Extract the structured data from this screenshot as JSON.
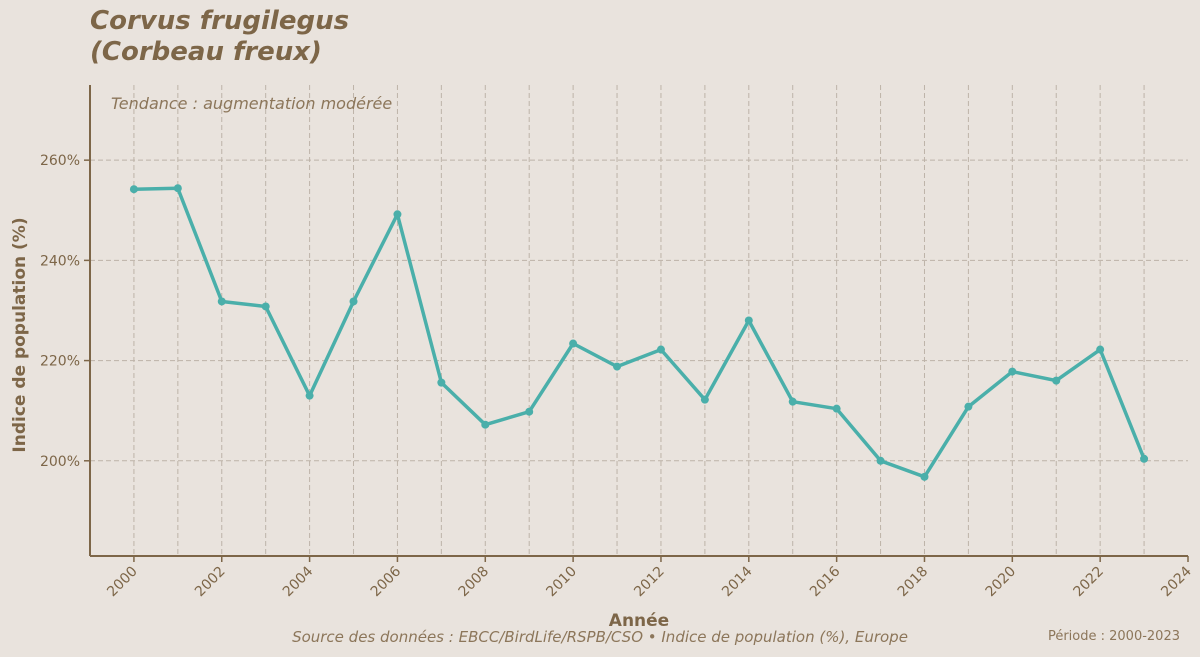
{
  "title_line1": "Corvus frugilegus",
  "title_line2": "(Corbeau freux)",
  "annotation": "Tendance : augmentation modérée",
  "footer": {
    "source": "Source des données : EBCC/BirdLife/RSPB/CSO • Indice de population (%), Europe",
    "period": "Période : 2000-2023"
  },
  "colors": {
    "line": "#4aafaa",
    "text": "#7d6648",
    "axis": "#7d6648",
    "grid": "#bdb3a8",
    "background": "#e9e3dd"
  },
  "chart_data": {
    "type": "line",
    "xlabel": "Année",
    "ylabel": "Indice de population (%)",
    "xlim": [
      1999,
      2024
    ],
    "ylim": [
      181,
      275
    ],
    "xticks": [
      2000,
      2002,
      2004,
      2006,
      2008,
      2010,
      2012,
      2014,
      2016,
      2018,
      2020,
      2022,
      2024
    ],
    "yticks": [
      200,
      220,
      240,
      260
    ],
    "ytick_labels": [
      "200%",
      "220%",
      "240%",
      "260%"
    ],
    "grid": true,
    "series": [
      {
        "x": [
          2000,
          2001,
          2002,
          2003,
          2004,
          2005,
          2006,
          2007,
          2008,
          2009,
          2010,
          2011,
          2012,
          2013,
          2014,
          2015,
          2016,
          2017,
          2018,
          2019,
          2020,
          2021,
          2022,
          2023
        ],
        "values": [
          254.2,
          254.4,
          231.8,
          230.8,
          213.0,
          231.8,
          249.2,
          215.6,
          207.2,
          209.8,
          223.4,
          218.8,
          222.2,
          212.2,
          228.0,
          211.8,
          210.4,
          200.0,
          196.8,
          210.8,
          217.8,
          216.0,
          222.2,
          200.4
        ]
      }
    ]
  }
}
